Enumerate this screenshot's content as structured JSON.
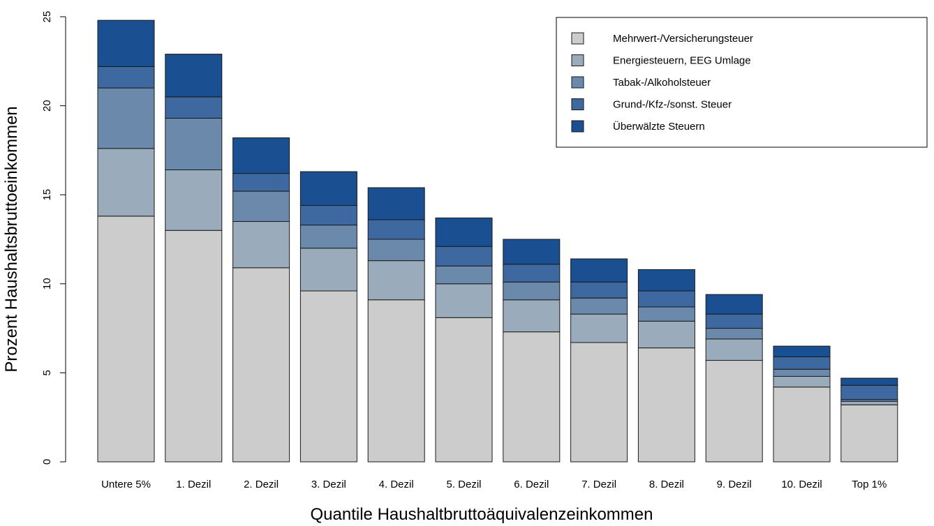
{
  "chart_data": {
    "type": "bar",
    "stacked": true,
    "xlabel": "Quantile Haushaltbruttoäquivalenzeinkommen",
    "ylabel": "Prozent Haushaltsbruttoeinkommen",
    "ylim": [
      0,
      25
    ],
    "yticks": [
      "0",
      "5",
      "10",
      "15",
      "20",
      "25"
    ],
    "grid": false,
    "legend_position": "top-right",
    "categories": [
      "Untere 5%",
      "1. Dezil",
      "2. Dezil",
      "3. Dezil",
      "4. Dezil",
      "5. Dezil",
      "6. Dezil",
      "7. Dezil",
      "8. Dezil",
      "9. Dezil",
      "10. Dezil",
      "Top 1%"
    ],
    "series": [
      {
        "name": "Mehrwert-/Versicherungsteuer",
        "color": "#cccccc",
        "values": [
          13.8,
          13.0,
          10.9,
          9.6,
          9.1,
          8.1,
          7.3,
          6.7,
          6.4,
          5.7,
          4.2,
          3.2
        ]
      },
      {
        "name": "Energiesteuern, EEG Umlage",
        "color": "#9aabbc",
        "values": [
          3.8,
          3.4,
          2.6,
          2.4,
          2.2,
          1.9,
          1.8,
          1.6,
          1.5,
          1.2,
          0.6,
          0.2
        ]
      },
      {
        "name": "Tabak-/Alkoholsteuer",
        "color": "#6b89ab",
        "values": [
          3.4,
          2.9,
          1.7,
          1.3,
          1.2,
          1.0,
          1.0,
          0.9,
          0.8,
          0.6,
          0.4,
          0.1
        ]
      },
      {
        "name": "Grund-/Kfz-/sonst. Steuer",
        "color": "#3e68a0",
        "values": [
          1.2,
          1.2,
          1.0,
          1.1,
          1.1,
          1.1,
          1.0,
          0.9,
          0.9,
          0.8,
          0.7,
          0.8
        ]
      },
      {
        "name": "Überwälzte Steuern",
        "color": "#1a4f92",
        "values": [
          2.6,
          2.4,
          2.0,
          1.9,
          1.8,
          1.6,
          1.4,
          1.3,
          1.2,
          1.1,
          0.6,
          0.4
        ]
      }
    ]
  }
}
